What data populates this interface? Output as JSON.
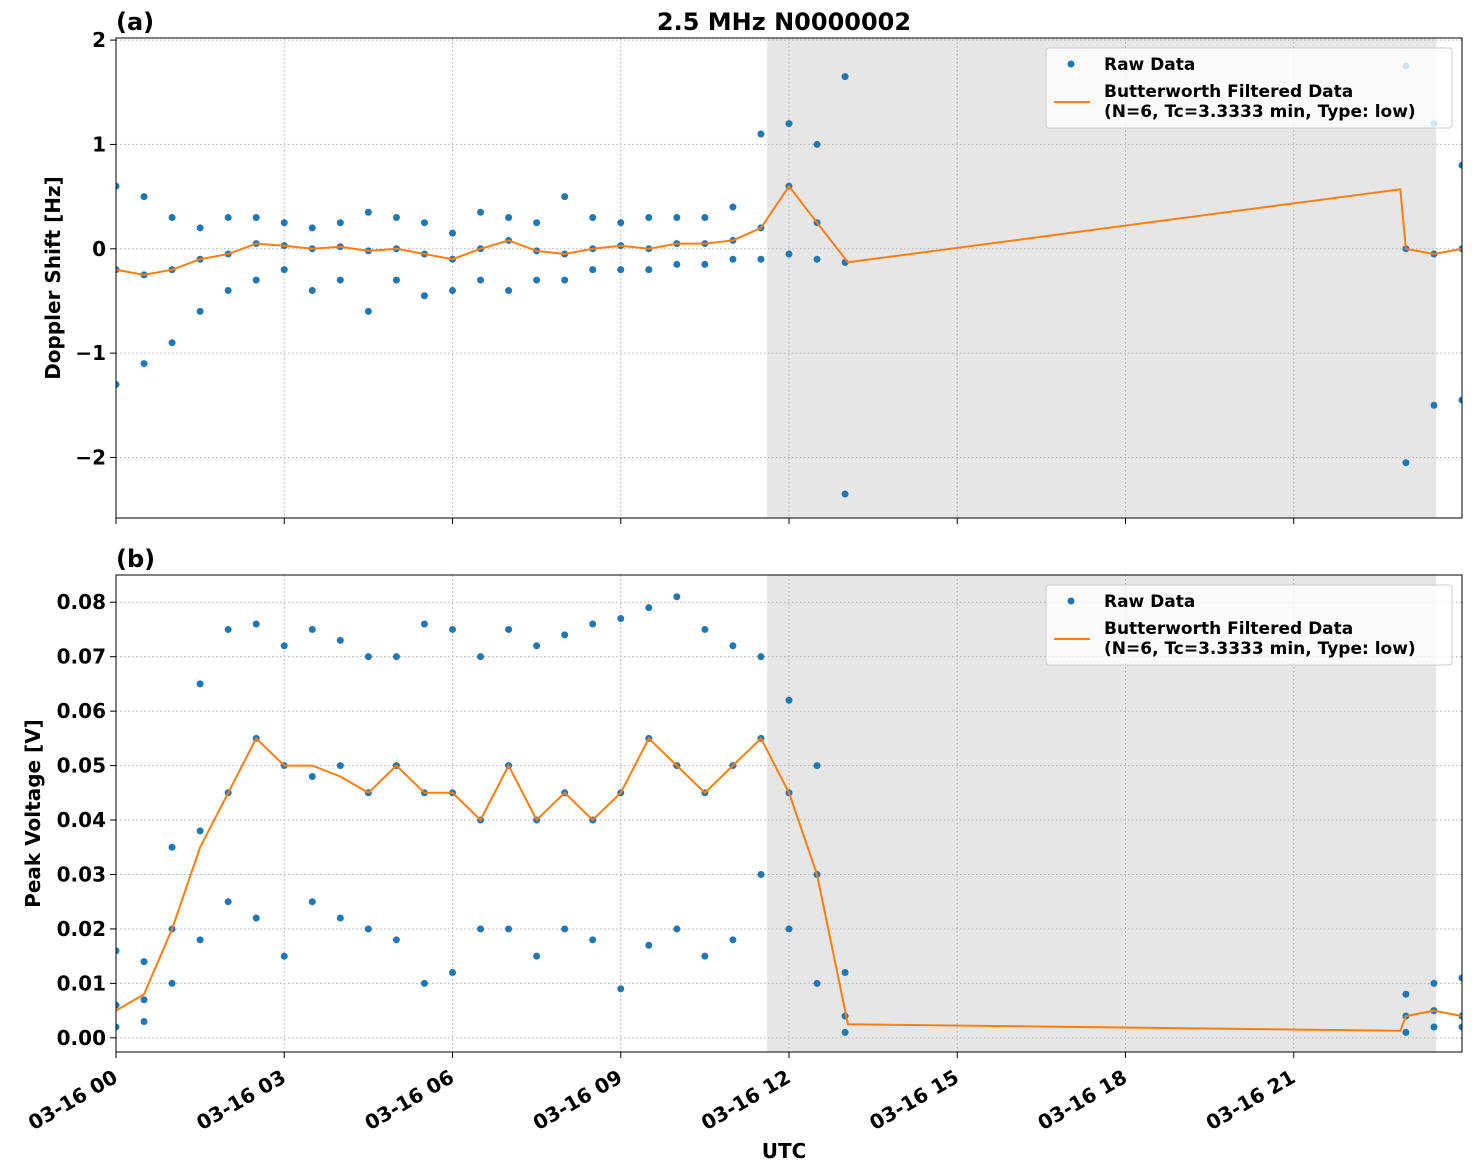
{
  "chart_data": [
    {
      "type": "line",
      "panel_label": "(a)",
      "title": "2.5 MHz N0000002",
      "ylabel": "Doppler Shift [Hz]",
      "xlim": [
        0,
        24
      ],
      "xticks": [
        0,
        3,
        6,
        9,
        12,
        15,
        18,
        21
      ],
      "ylim": [
        -2.58,
        2.02
      ],
      "yticks": [
        {
          "value": -2,
          "label": "−2"
        },
        {
          "value": -1,
          "label": "−1"
        },
        0,
        1,
        2
      ],
      "grid": true,
      "legend": "upper right",
      "shaded_span": [
        11.61,
        23.54
      ],
      "shaded_color": "#e6e6e6",
      "series": [
        {
          "name": "Raw Data",
          "style": "marker",
          "color": "#1f77b4",
          "x": [
            0,
            0,
            0,
            0.5,
            0.5,
            0.5,
            1,
            1,
            1,
            1.5,
            1.5,
            1.5,
            2,
            2,
            2,
            2.5,
            2.5,
            2.5,
            3,
            3,
            3,
            3.5,
            3.5,
            3.5,
            4,
            4,
            4,
            4.5,
            4.5,
            4.5,
            5,
            5,
            5,
            5.5,
            5.5,
            5.5,
            6,
            6,
            6,
            6.5,
            6.5,
            6.5,
            7,
            7,
            7,
            7.5,
            7.5,
            7.5,
            8,
            8,
            8,
            8.5,
            8.5,
            8.5,
            9,
            9,
            9,
            9.5,
            9.5,
            9.5,
            10,
            10,
            10,
            10.5,
            10.5,
            10.5,
            11,
            11,
            11,
            11.5,
            11.5,
            11.5,
            12,
            12,
            12,
            12.5,
            12.5,
            12.5,
            13,
            13,
            13,
            23,
            23,
            23,
            23.5,
            23.5,
            23.5,
            24,
            24,
            24
          ],
          "values": [
            0.6,
            -0.2,
            -1.3,
            0.5,
            -0.25,
            -1.1,
            0.3,
            -0.2,
            -0.9,
            0.2,
            -0.1,
            -0.6,
            0.3,
            -0.05,
            -0.4,
            0.3,
            0.05,
            -0.3,
            0.25,
            0.03,
            -0.2,
            0.2,
            0,
            -0.4,
            0.25,
            0.02,
            -0.3,
            0.35,
            -0.02,
            -0.6,
            0.3,
            0,
            -0.3,
            0.25,
            -0.05,
            -0.45,
            0.15,
            -0.1,
            -0.4,
            0.35,
            0,
            -0.3,
            0.3,
            0.08,
            -0.4,
            0.25,
            -0.02,
            -0.3,
            0.5,
            -0.05,
            -0.3,
            0.3,
            0,
            -0.2,
            0.25,
            0.03,
            -0.2,
            0.3,
            0,
            -0.2,
            0.3,
            0.05,
            -0.15,
            0.3,
            0.05,
            -0.15,
            0.4,
            0.08,
            -0.1,
            1.1,
            0.2,
            -0.1,
            1.2,
            0.6,
            -0.05,
            1,
            0.25,
            -0.1,
            1.65,
            -0.13,
            -2.35,
            1.75,
            0,
            -2.05,
            1.2,
            -0.05,
            -1.5,
            0.8,
            0,
            -1.45
          ]
        },
        {
          "name": "Butterworth Filtered Data\n(N=6, Tc=3.3333 min, Type: low)",
          "style": "line",
          "color": "#ff7f0e",
          "x": [
            0,
            0.5,
            1,
            1.5,
            2,
            2.5,
            3,
            3.5,
            4,
            4.5,
            5,
            5.5,
            6,
            6.5,
            7,
            7.5,
            8,
            8.5,
            9,
            9.5,
            10,
            10.5,
            11,
            11.5,
            12,
            12.5,
            13.05,
            22.9,
            23,
            23.5,
            24
          ],
          "values": [
            -0.2,
            -0.25,
            -0.2,
            -0.1,
            -0.05,
            0.05,
            0.03,
            0,
            0.02,
            -0.02,
            0,
            -0.05,
            -0.1,
            0,
            0.08,
            -0.02,
            -0.05,
            0,
            0.03,
            0,
            0.05,
            0.05,
            0.08,
            0.2,
            0.6,
            0.25,
            -0.13,
            0.57,
            0,
            -0.05,
            0
          ]
        }
      ]
    },
    {
      "type": "line",
      "panel_label": "(b)",
      "ylabel": "Peak Voltage [V]",
      "xlabel": "UTC",
      "xlim": [
        0,
        24
      ],
      "xticks": [
        {
          "value": 0,
          "label": "03-16 00"
        },
        {
          "value": 3,
          "label": "03-16 03"
        },
        {
          "value": 6,
          "label": "03-16 06"
        },
        {
          "value": 9,
          "label": "03-16 09"
        },
        {
          "value": 12,
          "label": "03-16 12"
        },
        {
          "value": 15,
          "label": "03-16 15"
        },
        {
          "value": 18,
          "label": "03-16 18"
        },
        {
          "value": 21,
          "label": "03-16 21"
        }
      ],
      "ylim": [
        -0.0026,
        0.085
      ],
      "yticks": [
        {
          "value": 0,
          "label": "0.00"
        },
        0.01,
        0.02,
        0.03,
        0.04,
        0.05,
        0.06,
        0.07,
        0.08
      ],
      "grid": true,
      "legend": "upper right",
      "shaded_span": [
        11.61,
        23.54
      ],
      "shaded_color": "#e6e6e6",
      "series": [
        {
          "name": "Raw Data",
          "style": "marker",
          "color": "#1f77b4",
          "x": [
            0,
            0,
            0,
            0.5,
            0.5,
            0.5,
            1,
            1,
            1,
            1.5,
            1.5,
            1.5,
            2,
            2,
            2,
            2.5,
            2.5,
            2.5,
            3,
            3,
            3,
            3.5,
            3.5,
            3.5,
            4,
            4,
            4,
            4.5,
            4.5,
            4.5,
            5,
            5,
            5,
            5.5,
            5.5,
            5.5,
            6,
            6,
            6,
            6.5,
            6.5,
            6.5,
            7,
            7,
            7,
            7.5,
            7.5,
            7.5,
            8,
            8,
            8,
            8.5,
            8.5,
            8.5,
            9,
            9,
            9,
            9.5,
            9.5,
            9.5,
            10,
            10,
            10,
            10.5,
            10.5,
            10.5,
            11,
            11,
            11,
            11.5,
            11.5,
            11.5,
            12,
            12,
            12,
            12.5,
            12.5,
            12.5,
            13,
            13,
            13,
            23,
            23,
            23,
            23.5,
            23.5,
            23.5,
            24,
            24,
            24
          ],
          "values": [
            0.016,
            0.006,
            0.002,
            0.014,
            0.007,
            0.003,
            0.035,
            0.02,
            0.01,
            0.065,
            0.038,
            0.018,
            0.075,
            0.045,
            0.025,
            0.076,
            0.055,
            0.022,
            0.072,
            0.05,
            0.015,
            0.075,
            0.048,
            0.025,
            0.073,
            0.05,
            0.022,
            0.07,
            0.045,
            0.02,
            0.07,
            0.05,
            0.018,
            0.076,
            0.045,
            0.01,
            0.075,
            0.045,
            0.012,
            0.07,
            0.04,
            0.02,
            0.075,
            0.05,
            0.02,
            0.072,
            0.04,
            0.015,
            0.074,
            0.045,
            0.02,
            0.076,
            0.04,
            0.018,
            0.077,
            0.045,
            0.009,
            0.079,
            0.055,
            0.017,
            0.081,
            0.05,
            0.02,
            0.075,
            0.045,
            0.015,
            0.072,
            0.05,
            0.018,
            0.07,
            0.055,
            0.03,
            0.062,
            0.045,
            0.02,
            0.05,
            0.03,
            0.01,
            0.012,
            0.004,
            0.001,
            0.008,
            0.004,
            0.001,
            0.01,
            0.005,
            0.002,
            0.011,
            0.004,
            0.002
          ]
        },
        {
          "name": "Butterworth Filtered Data\n(N=6, Tc=3.3333 min, Type: low)",
          "style": "line",
          "color": "#ff7f0e",
          "x": [
            0,
            0.5,
            1,
            1.5,
            2,
            2.5,
            3,
            3.5,
            4,
            4.5,
            5,
            5.5,
            6,
            6.5,
            7,
            7.5,
            8,
            8.5,
            9,
            9.5,
            10,
            10.5,
            11,
            11.5,
            12,
            12.5,
            13.05,
            22.9,
            23,
            23.5,
            24
          ],
          "values": [
            0.005,
            0.008,
            0.02,
            0.035,
            0.045,
            0.055,
            0.05,
            0.05,
            0.048,
            0.045,
            0.05,
            0.045,
            0.045,
            0.04,
            0.05,
            0.04,
            0.045,
            0.04,
            0.045,
            0.055,
            0.05,
            0.045,
            0.05,
            0.055,
            0.045,
            0.03,
            0.0025,
            0.0013,
            0.004,
            0.005,
            0.004
          ]
        }
      ]
    }
  ]
}
